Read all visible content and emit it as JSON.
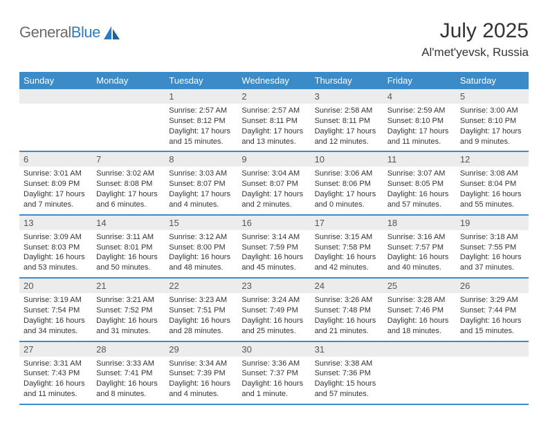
{
  "brand": {
    "text_a": "General",
    "text_b": "Blue"
  },
  "header": {
    "month": "July 2025",
    "location": "Al'met'yevsk, Russia"
  },
  "colors": {
    "header_bg": "#3b8bc8",
    "daynum_bg": "#ececec",
    "week_border": "#3b8bc8",
    "logo_gray": "#6b6b6b",
    "logo_blue": "#2f7bbf",
    "text": "#333333"
  },
  "weekdays": [
    "Sunday",
    "Monday",
    "Tuesday",
    "Wednesday",
    "Thursday",
    "Friday",
    "Saturday"
  ],
  "weeks": [
    [
      {
        "num": "",
        "sunrise": "",
        "sunset": "",
        "daylight": ""
      },
      {
        "num": "",
        "sunrise": "",
        "sunset": "",
        "daylight": ""
      },
      {
        "num": "1",
        "sunrise": "Sunrise: 2:57 AM",
        "sunset": "Sunset: 8:12 PM",
        "daylight": "Daylight: 17 hours and 15 minutes."
      },
      {
        "num": "2",
        "sunrise": "Sunrise: 2:57 AM",
        "sunset": "Sunset: 8:11 PM",
        "daylight": "Daylight: 17 hours and 13 minutes."
      },
      {
        "num": "3",
        "sunrise": "Sunrise: 2:58 AM",
        "sunset": "Sunset: 8:11 PM",
        "daylight": "Daylight: 17 hours and 12 minutes."
      },
      {
        "num": "4",
        "sunrise": "Sunrise: 2:59 AM",
        "sunset": "Sunset: 8:10 PM",
        "daylight": "Daylight: 17 hours and 11 minutes."
      },
      {
        "num": "5",
        "sunrise": "Sunrise: 3:00 AM",
        "sunset": "Sunset: 8:10 PM",
        "daylight": "Daylight: 17 hours and 9 minutes."
      }
    ],
    [
      {
        "num": "6",
        "sunrise": "Sunrise: 3:01 AM",
        "sunset": "Sunset: 8:09 PM",
        "daylight": "Daylight: 17 hours and 7 minutes."
      },
      {
        "num": "7",
        "sunrise": "Sunrise: 3:02 AM",
        "sunset": "Sunset: 8:08 PM",
        "daylight": "Daylight: 17 hours and 6 minutes."
      },
      {
        "num": "8",
        "sunrise": "Sunrise: 3:03 AM",
        "sunset": "Sunset: 8:07 PM",
        "daylight": "Daylight: 17 hours and 4 minutes."
      },
      {
        "num": "9",
        "sunrise": "Sunrise: 3:04 AM",
        "sunset": "Sunset: 8:07 PM",
        "daylight": "Daylight: 17 hours and 2 minutes."
      },
      {
        "num": "10",
        "sunrise": "Sunrise: 3:06 AM",
        "sunset": "Sunset: 8:06 PM",
        "daylight": "Daylight: 17 hours and 0 minutes."
      },
      {
        "num": "11",
        "sunrise": "Sunrise: 3:07 AM",
        "sunset": "Sunset: 8:05 PM",
        "daylight": "Daylight: 16 hours and 57 minutes."
      },
      {
        "num": "12",
        "sunrise": "Sunrise: 3:08 AM",
        "sunset": "Sunset: 8:04 PM",
        "daylight": "Daylight: 16 hours and 55 minutes."
      }
    ],
    [
      {
        "num": "13",
        "sunrise": "Sunrise: 3:09 AM",
        "sunset": "Sunset: 8:03 PM",
        "daylight": "Daylight: 16 hours and 53 minutes."
      },
      {
        "num": "14",
        "sunrise": "Sunrise: 3:11 AM",
        "sunset": "Sunset: 8:01 PM",
        "daylight": "Daylight: 16 hours and 50 minutes."
      },
      {
        "num": "15",
        "sunrise": "Sunrise: 3:12 AM",
        "sunset": "Sunset: 8:00 PM",
        "daylight": "Daylight: 16 hours and 48 minutes."
      },
      {
        "num": "16",
        "sunrise": "Sunrise: 3:14 AM",
        "sunset": "Sunset: 7:59 PM",
        "daylight": "Daylight: 16 hours and 45 minutes."
      },
      {
        "num": "17",
        "sunrise": "Sunrise: 3:15 AM",
        "sunset": "Sunset: 7:58 PM",
        "daylight": "Daylight: 16 hours and 42 minutes."
      },
      {
        "num": "18",
        "sunrise": "Sunrise: 3:16 AM",
        "sunset": "Sunset: 7:57 PM",
        "daylight": "Daylight: 16 hours and 40 minutes."
      },
      {
        "num": "19",
        "sunrise": "Sunrise: 3:18 AM",
        "sunset": "Sunset: 7:55 PM",
        "daylight": "Daylight: 16 hours and 37 minutes."
      }
    ],
    [
      {
        "num": "20",
        "sunrise": "Sunrise: 3:19 AM",
        "sunset": "Sunset: 7:54 PM",
        "daylight": "Daylight: 16 hours and 34 minutes."
      },
      {
        "num": "21",
        "sunrise": "Sunrise: 3:21 AM",
        "sunset": "Sunset: 7:52 PM",
        "daylight": "Daylight: 16 hours and 31 minutes."
      },
      {
        "num": "22",
        "sunrise": "Sunrise: 3:23 AM",
        "sunset": "Sunset: 7:51 PM",
        "daylight": "Daylight: 16 hours and 28 minutes."
      },
      {
        "num": "23",
        "sunrise": "Sunrise: 3:24 AM",
        "sunset": "Sunset: 7:49 PM",
        "daylight": "Daylight: 16 hours and 25 minutes."
      },
      {
        "num": "24",
        "sunrise": "Sunrise: 3:26 AM",
        "sunset": "Sunset: 7:48 PM",
        "daylight": "Daylight: 16 hours and 21 minutes."
      },
      {
        "num": "25",
        "sunrise": "Sunrise: 3:28 AM",
        "sunset": "Sunset: 7:46 PM",
        "daylight": "Daylight: 16 hours and 18 minutes."
      },
      {
        "num": "26",
        "sunrise": "Sunrise: 3:29 AM",
        "sunset": "Sunset: 7:44 PM",
        "daylight": "Daylight: 16 hours and 15 minutes."
      }
    ],
    [
      {
        "num": "27",
        "sunrise": "Sunrise: 3:31 AM",
        "sunset": "Sunset: 7:43 PM",
        "daylight": "Daylight: 16 hours and 11 minutes."
      },
      {
        "num": "28",
        "sunrise": "Sunrise: 3:33 AM",
        "sunset": "Sunset: 7:41 PM",
        "daylight": "Daylight: 16 hours and 8 minutes."
      },
      {
        "num": "29",
        "sunrise": "Sunrise: 3:34 AM",
        "sunset": "Sunset: 7:39 PM",
        "daylight": "Daylight: 16 hours and 4 minutes."
      },
      {
        "num": "30",
        "sunrise": "Sunrise: 3:36 AM",
        "sunset": "Sunset: 7:37 PM",
        "daylight": "Daylight: 16 hours and 1 minute."
      },
      {
        "num": "31",
        "sunrise": "Sunrise: 3:38 AM",
        "sunset": "Sunset: 7:36 PM",
        "daylight": "Daylight: 15 hours and 57 minutes."
      },
      {
        "num": "",
        "sunrise": "",
        "sunset": "",
        "daylight": ""
      },
      {
        "num": "",
        "sunrise": "",
        "sunset": "",
        "daylight": ""
      }
    ]
  ]
}
